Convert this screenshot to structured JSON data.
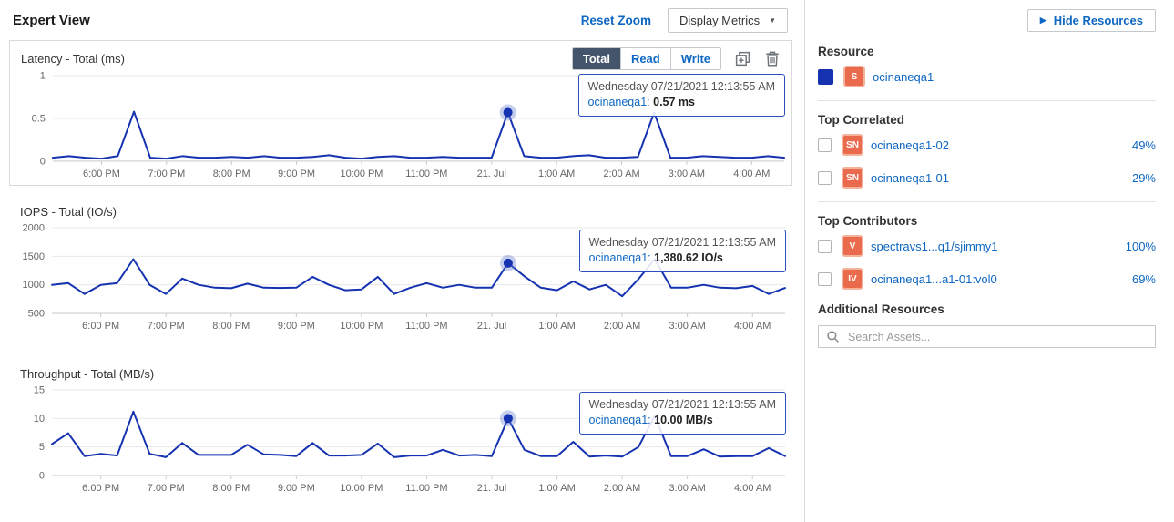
{
  "header": {
    "title": "Expert View",
    "reset_zoom": "Reset Zoom",
    "display_metrics": "Display Metrics"
  },
  "toolbar": {
    "segments": [
      "Total",
      "Read",
      "Write"
    ],
    "selected": "Total"
  },
  "colors": {
    "series": "#1532b0",
    "marker_halo": "rgba(110,135,210,0.40)",
    "link": "#0e67c2",
    "selected_tab_bg": "#44546a",
    "asset_icon_bg": "#e96a4c",
    "asset_icon_ring": "#f4b39d",
    "tooltip_border": "#2a4fc2"
  },
  "chart_data": [
    {
      "type": "line",
      "title": "Latency - Total (ms)",
      "ylabel": "ms",
      "x_start": 0.25,
      "x_step": 0.25,
      "values": [
        0.04,
        0.06,
        0.04,
        0.03,
        0.06,
        0.58,
        0.04,
        0.03,
        0.06,
        0.04,
        0.04,
        0.05,
        0.04,
        0.06,
        0.04,
        0.04,
        0.05,
        0.07,
        0.04,
        0.03,
        0.05,
        0.06,
        0.04,
        0.04,
        0.05,
        0.04,
        0.04,
        0.04,
        0.57,
        0.06,
        0.04,
        0.04,
        0.06,
        0.07,
        0.04,
        0.04,
        0.05,
        0.57,
        0.04,
        0.04,
        0.06,
        0.05,
        0.04,
        0.04,
        0.06,
        0.04
      ],
      "ylim": [
        0,
        1
      ],
      "yticks": [
        {
          "v": 0,
          "label": "0"
        },
        {
          "v": 0.5,
          "label": "0.5"
        },
        {
          "v": 1,
          "label": "1"
        }
      ],
      "xticks": [
        {
          "pos": 1,
          "label": "6:00 PM"
        },
        {
          "pos": 2,
          "label": "7:00 PM"
        },
        {
          "pos": 3,
          "label": "8:00 PM"
        },
        {
          "pos": 4,
          "label": "9:00 PM"
        },
        {
          "pos": 5,
          "label": "10:00 PM"
        },
        {
          "pos": 6,
          "label": "11:00 PM"
        },
        {
          "pos": 7,
          "label": "21. Jul"
        },
        {
          "pos": 8,
          "label": "1:00 AM"
        },
        {
          "pos": 9,
          "label": "2:00 AM"
        },
        {
          "pos": 10,
          "label": "3:00 AM"
        },
        {
          "pos": 11,
          "label": "4:00 AM"
        }
      ],
      "marker_x": 7.25,
      "tooltip": {
        "date": "Wednesday 07/21/2021 12:13:55 AM",
        "name_label": "ocinaneqa1:",
        "value": "0.57 ms"
      }
    },
    {
      "type": "line",
      "title": "IOPS - Total (IO/s)",
      "ylabel": "IO/s",
      "x_start": 0.25,
      "x_step": 0.25,
      "values": [
        1000,
        1030,
        840,
        1000,
        1030,
        1450,
        1000,
        840,
        1110,
        1000,
        950,
        940,
        1020,
        950,
        945,
        950,
        1140,
        1000,
        905,
        920,
        1140,
        840,
        950,
        1030,
        950,
        1000,
        950,
        950,
        1380.62,
        1150,
        950,
        905,
        1060,
        920,
        1000,
        800,
        1100,
        1450,
        950,
        950,
        1000,
        950,
        940,
        980,
        840,
        945
      ],
      "ylim": [
        500,
        2000
      ],
      "yticks": [
        {
          "v": 500,
          "label": "500"
        },
        {
          "v": 1000,
          "label": "1000"
        },
        {
          "v": 1500,
          "label": "1500"
        },
        {
          "v": 2000,
          "label": "2000"
        }
      ],
      "xticks": [
        {
          "pos": 1,
          "label": "6:00 PM"
        },
        {
          "pos": 2,
          "label": "7:00 PM"
        },
        {
          "pos": 3,
          "label": "8:00 PM"
        },
        {
          "pos": 4,
          "label": "9:00 PM"
        },
        {
          "pos": 5,
          "label": "10:00 PM"
        },
        {
          "pos": 6,
          "label": "11:00 PM"
        },
        {
          "pos": 7,
          "label": "21. Jul"
        },
        {
          "pos": 8,
          "label": "1:00 AM"
        },
        {
          "pos": 9,
          "label": "2:00 AM"
        },
        {
          "pos": 10,
          "label": "3:00 AM"
        },
        {
          "pos": 11,
          "label": "4:00 AM"
        }
      ],
      "marker_x": 7.25,
      "tooltip": {
        "date": "Wednesday 07/21/2021 12:13:55 AM",
        "name_label": "ocinaneqa1:",
        "value": "1,380.62 IO/s"
      }
    },
    {
      "type": "line",
      "title": "Throughput - Total (MB/s)",
      "ylabel": "MB/s",
      "x_start": 0.25,
      "x_step": 0.25,
      "values": [
        5.5,
        7.4,
        3.4,
        3.8,
        3.5,
        11.2,
        3.8,
        3.2,
        5.7,
        3.6,
        3.6,
        3.6,
        5.4,
        3.7,
        3.6,
        3.4,
        5.7,
        3.5,
        3.5,
        3.6,
        5.6,
        3.2,
        3.5,
        3.5,
        4.5,
        3.5,
        3.6,
        3.4,
        10.0,
        4.5,
        3.4,
        3.4,
        5.9,
        3.3,
        3.5,
        3.3,
        5.0,
        10.5,
        3.4,
        3.4,
        4.6,
        3.3,
        3.4,
        3.4,
        4.8,
        3.4
      ],
      "ylim": [
        0,
        15
      ],
      "yticks": [
        {
          "v": 0,
          "label": "0"
        },
        {
          "v": 5,
          "label": "5"
        },
        {
          "v": 10,
          "label": "10"
        },
        {
          "v": 15,
          "label": "15"
        }
      ],
      "xticks": [
        {
          "pos": 1,
          "label": "6:00 PM"
        },
        {
          "pos": 2,
          "label": "7:00 PM"
        },
        {
          "pos": 3,
          "label": "8:00 PM"
        },
        {
          "pos": 4,
          "label": "9:00 PM"
        },
        {
          "pos": 5,
          "label": "10:00 PM"
        },
        {
          "pos": 6,
          "label": "11:00 PM"
        },
        {
          "pos": 7,
          "label": "21. Jul"
        },
        {
          "pos": 8,
          "label": "1:00 AM"
        },
        {
          "pos": 9,
          "label": "2:00 AM"
        },
        {
          "pos": 10,
          "label": "3:00 AM"
        },
        {
          "pos": 11,
          "label": "4:00 AM"
        }
      ],
      "marker_x": 7.25,
      "tooltip": {
        "date": "Wednesday 07/21/2021 12:13:55 AM",
        "name_label": "ocinaneqa1:",
        "value": "10.00 MB/s"
      }
    }
  ],
  "sidebar": {
    "hide_resources": "Hide Resources",
    "resource": {
      "heading": "Resource",
      "icon": "S",
      "name": "ocinaneqa1"
    },
    "top_correlated": {
      "heading": "Top Correlated",
      "items": [
        {
          "icon": "SN",
          "name": "ocinaneqa1-02",
          "percent": "49%"
        },
        {
          "icon": "SN",
          "name": "ocinaneqa1-01",
          "percent": "29%"
        }
      ]
    },
    "top_contributors": {
      "heading": "Top Contributors",
      "items": [
        {
          "icon": "V",
          "name": "spectravs1...q1/sjimmy1",
          "percent": "100%"
        },
        {
          "icon": "IV",
          "name": "ocinaneqa1...a1-01:vol0",
          "percent": "69%"
        }
      ]
    },
    "additional_resources": {
      "heading": "Additional Resources",
      "search_placeholder": "Search Assets..."
    }
  }
}
